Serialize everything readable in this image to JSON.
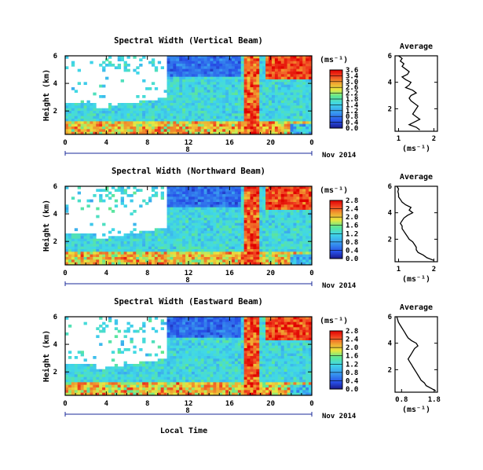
{
  "chart_data": [
    {
      "type": "heatmap",
      "title": "Spectral Width (Vertical Beam)",
      "ylabel": "Height (km)",
      "yticks": [
        "2",
        "4",
        "6"
      ],
      "ylim": [
        0.3,
        6
      ],
      "xticks": [
        "0",
        "4",
        "8",
        "12",
        "16",
        "20",
        "0"
      ],
      "xlim": [
        0,
        24
      ],
      "day_label": "8",
      "date_label": "Nov 2014",
      "colorbar": {
        "unit": "(ms⁻¹)",
        "ticks": [
          "3.6",
          "3.4",
          "3.0",
          "2.6",
          "2.2",
          "1.8",
          "1.4",
          "1.2",
          "0.8",
          "0.4",
          "0.0"
        ]
      },
      "average": {
        "title": "Average",
        "xlabel": "(ms⁻¹)",
        "xticks": [
          "1",
          "2"
        ],
        "xlim": [
          0.9,
          2.1
        ],
        "yticks": [
          "2",
          "4",
          "6"
        ],
        "ylim": [
          0.3,
          6
        ],
        "profile_height": [
          0.4,
          0.6,
          0.8,
          1.0,
          1.2,
          1.4,
          1.6,
          1.8,
          2.0,
          2.2,
          2.4,
          2.6,
          2.8,
          3.0,
          3.2,
          3.4,
          3.6,
          3.8,
          4.0,
          4.2,
          4.4,
          4.6,
          4.8,
          5.0,
          5.2,
          5.4,
          5.6,
          5.8,
          6.0
        ],
        "profile_value": [
          1.6,
          1.5,
          1.3,
          1.45,
          1.6,
          1.5,
          1.4,
          1.45,
          1.5,
          1.55,
          1.45,
          1.35,
          1.3,
          1.35,
          1.5,
          1.4,
          1.2,
          1.3,
          1.35,
          1.2,
          1.1,
          1.25,
          1.3,
          1.2,
          1.1,
          1.15,
          1.05,
          1.1,
          1.0
        ]
      }
    },
    {
      "type": "heatmap",
      "title": "Spectral Width (Northward Beam)",
      "ylabel": "Height (km)",
      "yticks": [
        "2",
        "4",
        "6"
      ],
      "ylim": [
        0.3,
        6
      ],
      "xticks": [
        "0",
        "4",
        "8",
        "12",
        "16",
        "20",
        "0"
      ],
      "xlim": [
        0,
        24
      ],
      "day_label": "8",
      "date_label": "Nov 2014",
      "colorbar": {
        "unit": "(ms⁻¹)",
        "ticks": [
          "2.8",
          "2.4",
          "2.0",
          "1.6",
          "1.2",
          "0.8",
          "0.4",
          "0.0"
        ]
      },
      "average": {
        "title": "Average",
        "xlabel": "(ms⁻¹)",
        "xticks": [
          "1",
          "2"
        ],
        "xlim": [
          0.9,
          2.1
        ],
        "yticks": [
          "2",
          "4",
          "6"
        ],
        "ylim": [
          0.3,
          6
        ],
        "profile_height": [
          0.4,
          0.6,
          0.8,
          1.0,
          1.2,
          1.4,
          1.6,
          1.8,
          2.0,
          2.2,
          2.4,
          2.6,
          2.8,
          3.0,
          3.2,
          3.4,
          3.6,
          3.8,
          4.0,
          4.2,
          4.4,
          4.6,
          4.8,
          5.0,
          5.2,
          5.4,
          5.6,
          5.8,
          6.0
        ],
        "profile_value": [
          2.0,
          1.8,
          1.7,
          1.55,
          1.5,
          1.5,
          1.45,
          1.4,
          1.3,
          1.25,
          1.2,
          1.15,
          1.1,
          1.1,
          1.05,
          1.1,
          1.15,
          1.25,
          1.4,
          1.3,
          1.35,
          1.2,
          1.1,
          1.05,
          1.0,
          1.0,
          0.98,
          1.0,
          0.95
        ]
      }
    },
    {
      "type": "heatmap",
      "title": "Spectral Width (Eastward Beam)",
      "ylabel": "Height (km)",
      "yticks": [
        "2",
        "4",
        "6"
      ],
      "ylim": [
        0.3,
        6
      ],
      "xticks": [
        "0",
        "4",
        "8",
        "12",
        "16",
        "20",
        "0"
      ],
      "xlim": [
        0,
        24
      ],
      "day_label": "8",
      "date_label": "Nov 2014",
      "xlabel": "Local Time",
      "colorbar": {
        "unit": "(ms⁻¹)",
        "ticks": [
          "2.8",
          "2.4",
          "2.0",
          "1.6",
          "1.2",
          "0.8",
          "0.4",
          "0.0"
        ]
      },
      "average": {
        "title": "Average",
        "xlabel": "(ms⁻¹)",
        "xticks": [
          "0.8",
          "1.8"
        ],
        "xlim": [
          0.6,
          1.9
        ],
        "yticks": [
          "2",
          "4",
          "6"
        ],
        "ylim": [
          0.3,
          6
        ],
        "profile_height": [
          0.4,
          0.6,
          0.8,
          1.0,
          1.2,
          1.4,
          1.6,
          1.8,
          2.0,
          2.2,
          2.4,
          2.6,
          2.8,
          3.0,
          3.2,
          3.4,
          3.6,
          3.8,
          4.0,
          4.2,
          4.4,
          4.6,
          4.8,
          5.0,
          5.2,
          5.4,
          5.6,
          5.8,
          6.0
        ],
        "profile_value": [
          1.85,
          1.7,
          1.55,
          1.5,
          1.4,
          1.35,
          1.3,
          1.25,
          1.2,
          1.15,
          1.1,
          1.05,
          1.0,
          1.05,
          1.1,
          1.15,
          1.2,
          1.3,
          1.25,
          1.1,
          1.0,
          0.95,
          0.9,
          0.85,
          0.8,
          0.75,
          0.7,
          0.68,
          0.65
        ]
      }
    }
  ]
}
